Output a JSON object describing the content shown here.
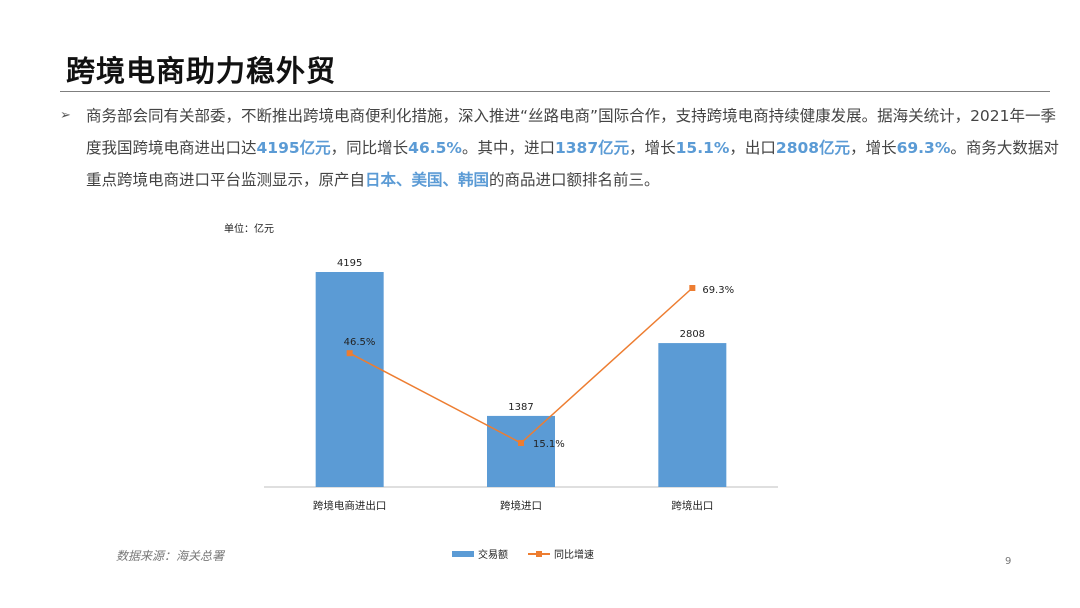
{
  "slide": {
    "title": "跨境电商助力稳外贸",
    "bullet_symbol": "➢",
    "paragraph": [
      {
        "t": "商务部会同有关部委，不断推出跨境电商便利化措施，深入推进“丝路电商”国际合作，支持跨境电商持续健康发展。据海关统计，2021年一季度我国跨境电商进出口达",
        "hl": false
      },
      {
        "t": "4195亿元",
        "hl": true
      },
      {
        "t": "，同比增长",
        "hl": false
      },
      {
        "t": "46.5%",
        "hl": true
      },
      {
        "t": "。其中，进口",
        "hl": false
      },
      {
        "t": "1387亿元",
        "hl": true
      },
      {
        "t": "，增长",
        "hl": false
      },
      {
        "t": "15.1%",
        "hl": true
      },
      {
        "t": "，出口",
        "hl": false
      },
      {
        "t": "2808亿元",
        "hl": true
      },
      {
        "t": "，增长",
        "hl": false
      },
      {
        "t": "69.3%",
        "hl": true
      },
      {
        "t": "。商务大数据对重点跨境电商进口平台监测显示，原产自",
        "hl": false
      },
      {
        "t": "日本、美国、韩国",
        "hl": true
      },
      {
        "t": "的商品进口额排名前三。",
        "hl": false
      }
    ],
    "unit_label": "单位：亿元",
    "source": "数据来源：海关总署",
    "page_number": "9"
  },
  "colors": {
    "bar": "#5b9bd5",
    "line": "#ed7d31",
    "highlight": "#5b9bd5"
  },
  "chart_data": {
    "type": "bar",
    "categories": [
      "跨境电商进出口",
      "跨境进口",
      "跨境出口"
    ],
    "series": [
      {
        "name": "交易额",
        "type": "bar",
        "values": [
          4195,
          1387,
          2808
        ],
        "labels": [
          "4195",
          "1387",
          "2808"
        ]
      },
      {
        "name": "同比增速",
        "type": "line",
        "values": [
          46.5,
          15.1,
          69.3
        ],
        "labels": [
          "46.5%",
          "15.1%",
          "69.3%"
        ]
      }
    ],
    "bar_axis_range": [
      0,
      5000
    ],
    "line_axis_range": [
      0,
      100
    ],
    "grid": false,
    "legend_position": "bottom"
  }
}
